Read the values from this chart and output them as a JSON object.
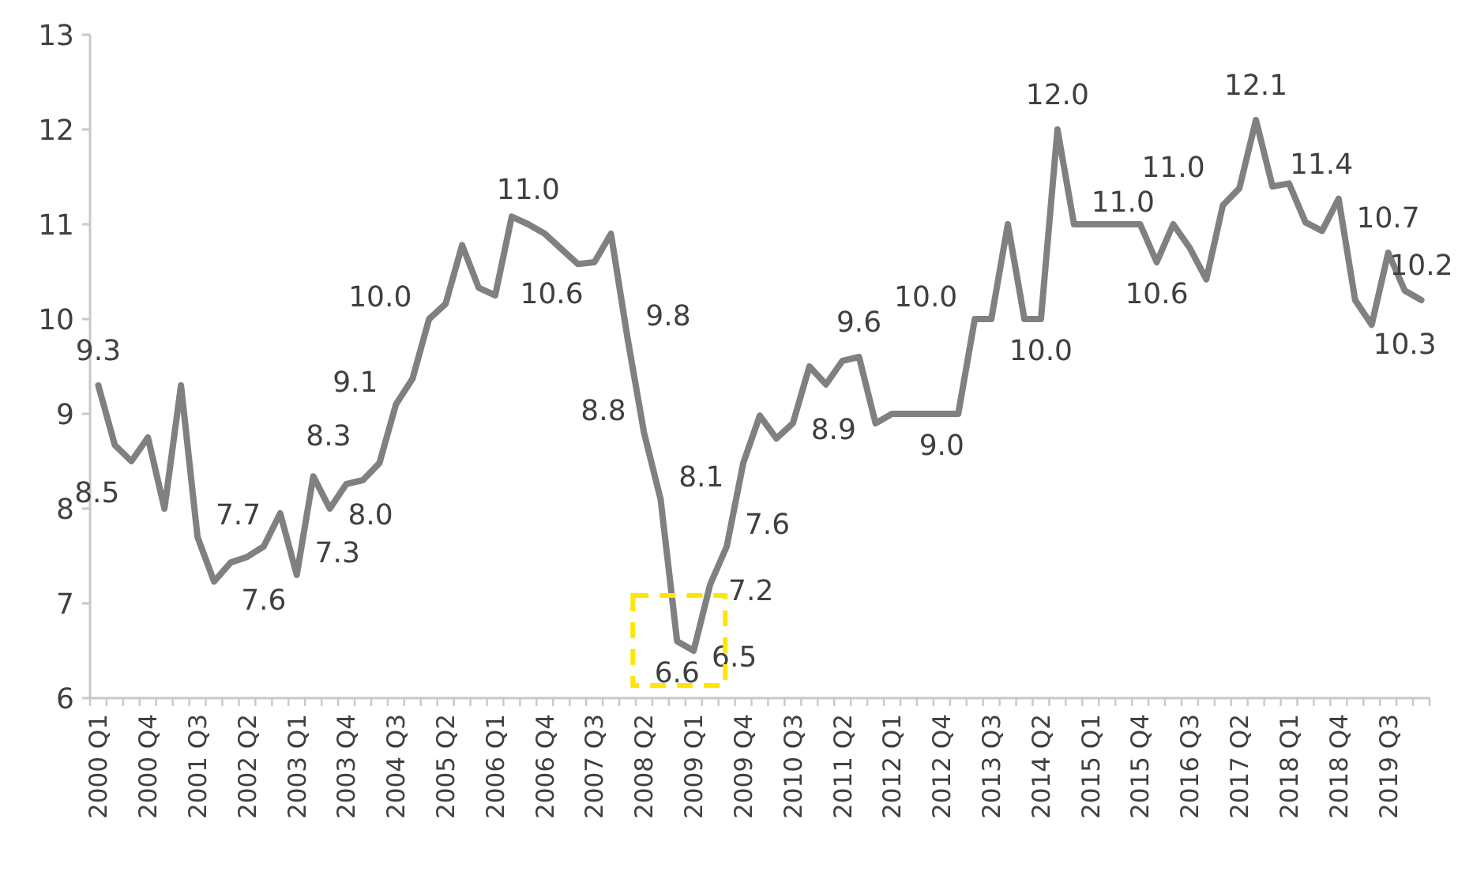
{
  "chart_data": {
    "type": "line",
    "categories": [
      "2000 Q1",
      null,
      null,
      "2000 Q4",
      null,
      null,
      "2001 Q3",
      null,
      null,
      "2002 Q2",
      null,
      null,
      "2003 Q1",
      null,
      null,
      "2003 Q4",
      null,
      null,
      "2004 Q3",
      null,
      null,
      "2005 Q2",
      null,
      null,
      "2006 Q1",
      null,
      null,
      "2006 Q4",
      null,
      null,
      "2007 Q3",
      null,
      null,
      "2008 Q2",
      null,
      null,
      "2009 Q1",
      null,
      null,
      "2009 Q4",
      null,
      null,
      "2010 Q3",
      null,
      null,
      "2011 Q2",
      null,
      null,
      "2012 Q1",
      null,
      null,
      "2012 Q4",
      null,
      null,
      "2013 Q3",
      null,
      null,
      "2014 Q2",
      null,
      null,
      "2015 Q1",
      null,
      null,
      "2015 Q4",
      null,
      null,
      "2016 Q3",
      null,
      null,
      "2017 Q2",
      null,
      null,
      "2018 Q1",
      null,
      null,
      "2018 Q4",
      null,
      null,
      "2019 Q3",
      null,
      null
    ],
    "series": [
      {
        "color": "#808080",
        "values": [
          9.3,
          8.67,
          8.5,
          8.75,
          8.0,
          9.3,
          7.7,
          7.23,
          7.43,
          7.49,
          7.6,
          7.95,
          7.3,
          8.34,
          8.0,
          8.26,
          8.3,
          8.48,
          9.1,
          9.37,
          10.0,
          10.16,
          10.78,
          10.33,
          10.25,
          11.08,
          11.0,
          10.9,
          10.74,
          10.58,
          10.6,
          10.9,
          9.8,
          8.8,
          8.1,
          6.6,
          6.5,
          7.2,
          7.6,
          8.48,
          8.98,
          8.74,
          8.9,
          9.5,
          9.31,
          9.56,
          9.6,
          8.9,
          9.0,
          9.0,
          9.0,
          9.0,
          9.0,
          10.0,
          10.0,
          11.0,
          10.0,
          10.0,
          12.0,
          11.0,
          11.0,
          11.0,
          11.0,
          11.0,
          10.6,
          11.0,
          10.75,
          10.42,
          11.2,
          11.38,
          12.1,
          11.4,
          11.43,
          11.02,
          10.93,
          11.27,
          10.2,
          9.94,
          10.7,
          10.3,
          10.2
        ],
        "value_labels": [
          "9.3",
          null,
          "8.5",
          null,
          null,
          null,
          "7.7",
          null,
          null,
          null,
          "7.6",
          null,
          "7.3",
          null,
          "8.0",
          null,
          "8.3",
          null,
          "9.1",
          null,
          "10.0",
          null,
          null,
          null,
          null,
          null,
          "11.0",
          null,
          null,
          null,
          "10.6",
          null,
          "9.8",
          "8.8",
          "8.1",
          "6.6",
          "6.5",
          "7.2",
          "7.6",
          null,
          null,
          null,
          "8.9",
          null,
          null,
          null,
          "9.6",
          null,
          null,
          null,
          null,
          "9.0",
          null,
          "10.0",
          null,
          null,
          null,
          "10.0",
          "12.0",
          "11.0",
          null,
          null,
          null,
          null,
          "10.6",
          "11.0",
          null,
          null,
          null,
          null,
          "12.1",
          "11.4",
          null,
          null,
          null,
          null,
          null,
          null,
          "10.7",
          "10.3",
          "10.2"
        ]
      }
    ],
    "ylim": [
      6,
      13
    ],
    "yticks": [
      6,
      7,
      8,
      9,
      10,
      11,
      12,
      13
    ],
    "grid": false,
    "marker": "none",
    "line_style": "solid"
  }
}
